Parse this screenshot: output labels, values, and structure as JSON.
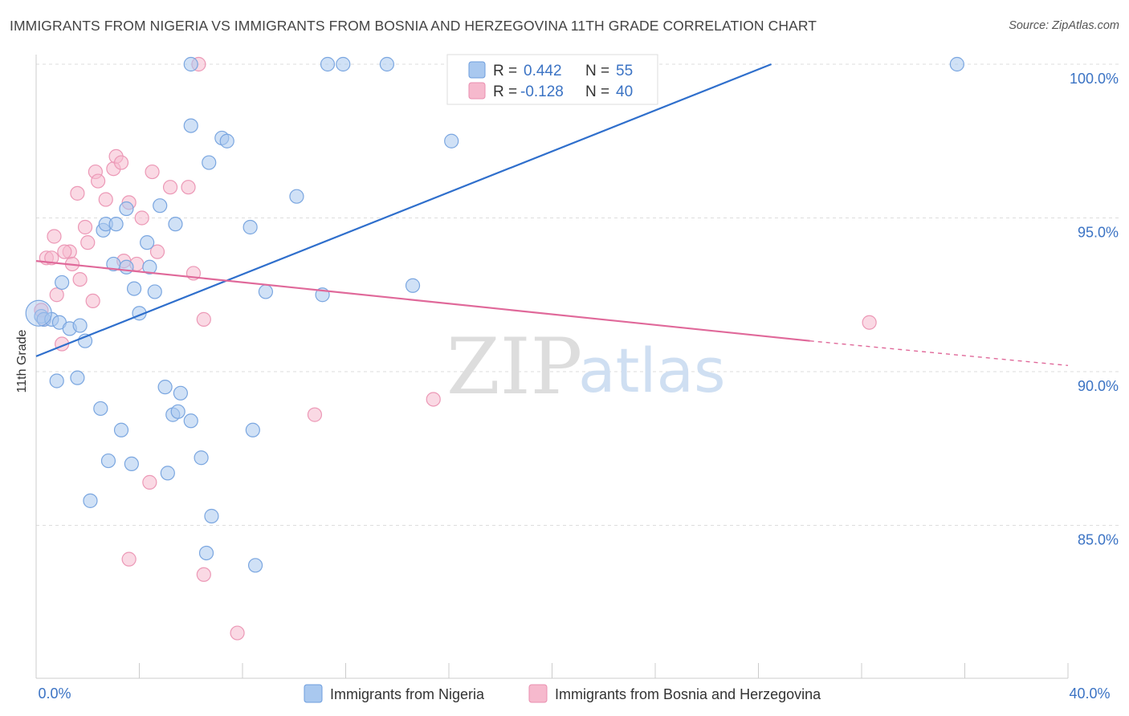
{
  "title": "IMMIGRANTS FROM NIGERIA VS IMMIGRANTS FROM BOSNIA AND HERZEGOVINA 11TH GRADE CORRELATION CHART",
  "source": "Source: ZipAtlas.com",
  "watermark": {
    "zip": "ZIP",
    "atlas": "atlas"
  },
  "colors": {
    "blue": "#3b73c4",
    "blue_fill": "#a9c8ef",
    "blue_line": "#2f6fcc",
    "pink": "#e36c98",
    "pink_fill": "#f6b9cd",
    "pink_line": "#e0699a"
  },
  "stats_box": {
    "rows": [
      {
        "r_label": "R =",
        "r_value": "0.442",
        "n_label": "N =",
        "n_value": "55"
      },
      {
        "r_label": "R =",
        "r_value": "-0.128",
        "n_label": "N =",
        "n_value": "40"
      }
    ]
  },
  "legend": {
    "items": [
      "Immigrants from Nigeria",
      "Immigrants from Bosnia and Herzegovina"
    ]
  },
  "chart_data": {
    "type": "scatter",
    "title": "IMMIGRANTS FROM NIGERIA VS IMMIGRANTS FROM BOSNIA AND HERZEGOVINA 11TH GRADE CORRELATION CHART",
    "xlabel": "",
    "ylabel": "11th Grade",
    "xlim": [
      0,
      40
    ],
    "ylim": [
      80.5,
      100.5
    ],
    "x_tick_labels": [
      "0.0%",
      "40.0%"
    ],
    "y_ticks": [
      85,
      90,
      95,
      100
    ],
    "y_tick_labels": [
      "85.0%",
      "90.0%",
      "95.0%",
      "100.0%"
    ],
    "grid": true,
    "legend_position": "bottom-center",
    "series": [
      {
        "name": "Immigrants from Nigeria",
        "color": "#a9c8ef",
        "points": [
          [
            0.2,
            91.8
          ],
          [
            0.3,
            91.7
          ],
          [
            0.6,
            91.7
          ],
          [
            1.0,
            92.9
          ],
          [
            0.9,
            91.6
          ],
          [
            1.3,
            91.4
          ],
          [
            1.7,
            91.5
          ],
          [
            1.9,
            91.0
          ],
          [
            0.8,
            89.7
          ],
          [
            1.6,
            89.8
          ],
          [
            2.6,
            94.6
          ],
          [
            2.7,
            94.8
          ],
          [
            3.1,
            94.8
          ],
          [
            3.0,
            93.5
          ],
          [
            3.5,
            93.4
          ],
          [
            2.5,
            88.8
          ],
          [
            2.8,
            87.1
          ],
          [
            2.1,
            85.8
          ],
          [
            3.3,
            88.1
          ],
          [
            3.7,
            87.0
          ],
          [
            3.8,
            92.7
          ],
          [
            4.0,
            91.9
          ],
          [
            4.3,
            94.2
          ],
          [
            4.4,
            93.4
          ],
          [
            4.6,
            92.6
          ],
          [
            4.8,
            95.4
          ],
          [
            3.5,
            95.3
          ],
          [
            5.0,
            89.5
          ],
          [
            5.3,
            88.6
          ],
          [
            5.5,
            88.7
          ],
          [
            5.6,
            89.3
          ],
          [
            5.1,
            86.7
          ],
          [
            5.4,
            94.8
          ],
          [
            6.0,
            88.4
          ],
          [
            6.4,
            87.2
          ],
          [
            6.6,
            84.1
          ],
          [
            6.8,
            85.3
          ],
          [
            6.0,
            98.0
          ],
          [
            6.7,
            96.8
          ],
          [
            7.2,
            97.6
          ],
          [
            7.4,
            97.5
          ],
          [
            8.3,
            94.7
          ],
          [
            8.4,
            88.1
          ],
          [
            8.5,
            83.7
          ],
          [
            8.9,
            92.6
          ],
          [
            10.1,
            95.7
          ],
          [
            11.1,
            92.5
          ],
          [
            11.3,
            100.0
          ],
          [
            11.9,
            100.0
          ],
          [
            13.6,
            100.0
          ],
          [
            6.0,
            100.0
          ],
          [
            14.6,
            92.8
          ],
          [
            16.1,
            97.5
          ],
          [
            16.7,
            100.0
          ],
          [
            35.7,
            100.0
          ]
        ]
      },
      {
        "name": "Immigrants from Bosnia and Herzegovina",
        "color": "#f6b9cd",
        "points": [
          [
            0.2,
            92.0
          ],
          [
            0.3,
            91.7
          ],
          [
            0.4,
            93.7
          ],
          [
            0.6,
            93.7
          ],
          [
            0.7,
            94.4
          ],
          [
            0.8,
            92.5
          ],
          [
            1.0,
            90.9
          ],
          [
            1.3,
            93.9
          ],
          [
            1.4,
            93.5
          ],
          [
            1.6,
            95.8
          ],
          [
            1.7,
            93.0
          ],
          [
            1.9,
            94.7
          ],
          [
            2.0,
            94.2
          ],
          [
            2.2,
            92.3
          ],
          [
            2.3,
            96.5
          ],
          [
            2.4,
            96.2
          ],
          [
            2.7,
            95.6
          ],
          [
            3.0,
            96.6
          ],
          [
            3.1,
            97.0
          ],
          [
            3.3,
            96.8
          ],
          [
            3.4,
            93.6
          ],
          [
            3.6,
            95.5
          ],
          [
            3.9,
            93.5
          ],
          [
            4.1,
            95.0
          ],
          [
            4.5,
            96.5
          ],
          [
            4.7,
            93.9
          ],
          [
            5.2,
            96.0
          ],
          [
            5.9,
            96.0
          ],
          [
            6.1,
            93.2
          ],
          [
            6.5,
            91.7
          ],
          [
            3.6,
            83.9
          ],
          [
            4.4,
            86.4
          ],
          [
            6.5,
            83.4
          ],
          [
            7.8,
            81.5
          ],
          [
            10.8,
            88.6
          ],
          [
            15.4,
            89.1
          ],
          [
            6.3,
            100.0
          ],
          [
            20.3,
            99.0
          ],
          [
            32.3,
            91.6
          ],
          [
            1.1,
            93.9
          ]
        ]
      }
    ],
    "trend_lines": [
      {
        "series": "Immigrants from Nigeria",
        "from": [
          0,
          90.5
        ],
        "to": [
          28.5,
          100.0
        ],
        "style": "solid"
      },
      {
        "series": "Immigrants from Bosnia and Herzegovina",
        "from": [
          0,
          93.6
        ],
        "to": [
          30.0,
          91.0
        ],
        "style": "solid",
        "extended_to": [
          40.0,
          90.2
        ],
        "extended_style": "dashed"
      }
    ],
    "stats": [
      {
        "series": "Immigrants from Nigeria",
        "R": 0.442,
        "N": 55
      },
      {
        "series": "Immigrants from Bosnia and Herzegovina",
        "R": -0.128,
        "N": 40
      }
    ]
  }
}
